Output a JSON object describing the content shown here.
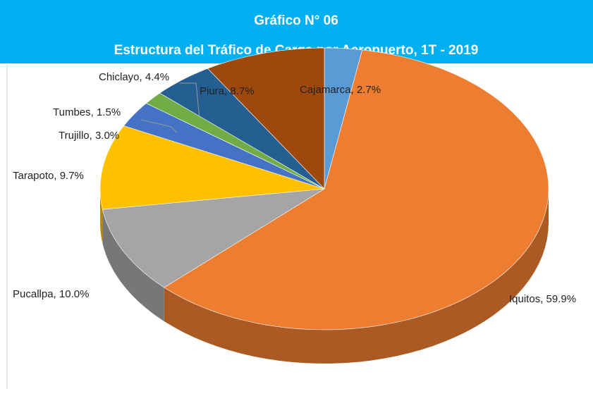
{
  "chart_data": {
    "type": "pie",
    "title": "Gráfico N°  06",
    "subtitle": "Estructura del Tráfico de Carga por Aeropuerto, 1T - 2019",
    "values": [
      2.7,
      59.9,
      10.0,
      9.7,
      3.0,
      1.5,
      4.4,
      8.7
    ],
    "value_labels": [
      "Cajamarca, 2.7%",
      "Iquitos, 59.9%",
      "Pucallpa, 10.0%",
      "Tarapoto, 9.7%",
      "Trujillo, 3.0%",
      "Tumbes, 1.5%",
      "Chiclayo, 4.4%",
      "Piura, 8.7%"
    ],
    "colors": [
      "#5b9bd5",
      "#ed7d31",
      "#a5a5a5",
      "#ffc000",
      "#4472c4",
      "#70ad47",
      "#255e91",
      "#9e480e"
    ]
  }
}
